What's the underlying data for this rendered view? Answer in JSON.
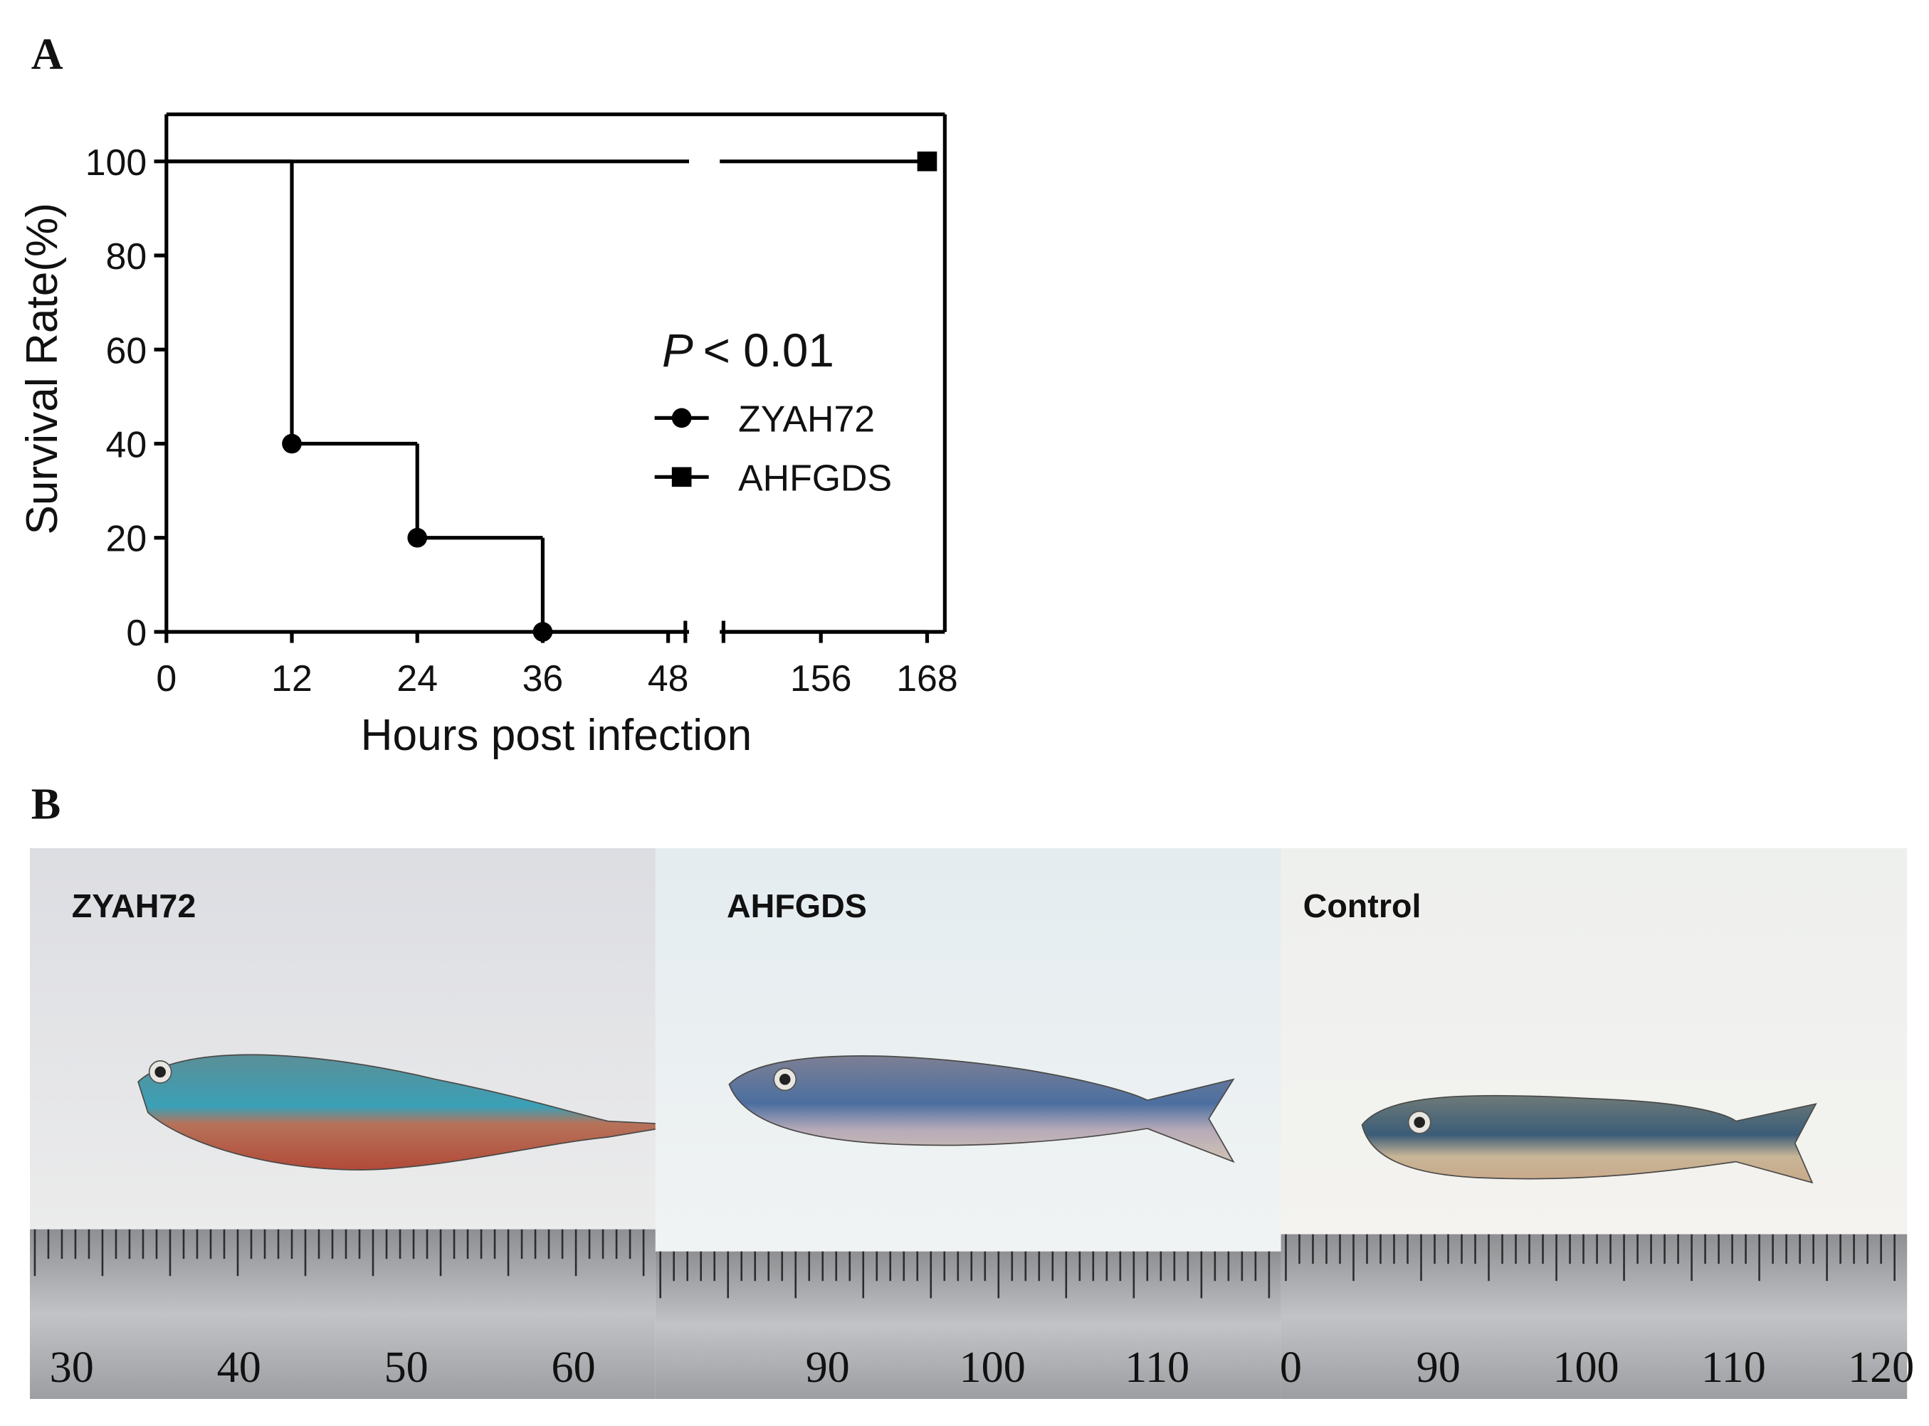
{
  "panels": {
    "a": "A",
    "b": "B"
  },
  "chart_data": {
    "type": "step",
    "x_label": "Hours post infection",
    "y_label": "Survival Rate(%)",
    "p_value": {
      "symbol": "P",
      "text": "< 0.01"
    },
    "xlim": [
      0,
      170
    ],
    "x_break": [
      50,
      145
    ],
    "xticks": [
      0,
      12,
      24,
      36,
      48,
      156,
      168
    ],
    "ylim": [
      0,
      110
    ],
    "yticks": [
      0,
      20,
      40,
      60,
      80,
      100
    ],
    "series": [
      {
        "name": "ZYAH72",
        "color": "#000000",
        "marker": "circle",
        "x": [
          0,
          12,
          24,
          36,
          168
        ],
        "values": [
          100,
          40,
          20,
          0,
          0
        ]
      },
      {
        "name": "AHFGDS",
        "color": "#000000",
        "marker": "square",
        "x": [
          0,
          168
        ],
        "values": [
          100,
          100
        ]
      }
    ]
  },
  "photos": [
    {
      "label": "ZYAH72",
      "ruler_labels": [
        "30",
        "40",
        "50",
        "60"
      ]
    },
    {
      "label": "AHFGDS",
      "ruler_labels": [
        "90",
        "100",
        "110"
      ]
    },
    {
      "label": "Control",
      "ruler_labels": [
        "0",
        "90",
        "100",
        "110",
        "120"
      ]
    }
  ]
}
